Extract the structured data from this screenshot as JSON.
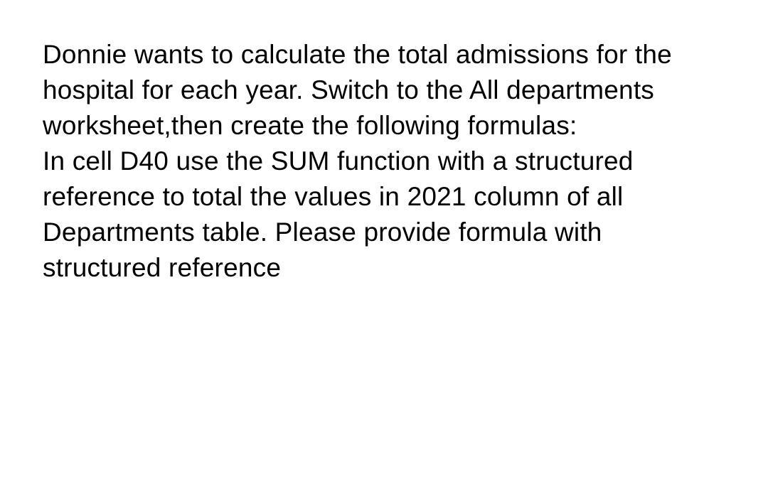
{
  "content": {
    "paragraph1": "Donnie wants to calculate the total admissions for the hospital for each year. Switch to the All departments worksheet,then create the following formulas:",
    "paragraph2": "In cell D40 use the SUM function with a structured reference to total the values in 2021 column of all Departments table. Please provide formula with structured reference",
    "font_size": 37,
    "line_height": 1.35,
    "text_color": "#000000",
    "background_color": "#ffffff",
    "font_family": "Segoe UI"
  }
}
